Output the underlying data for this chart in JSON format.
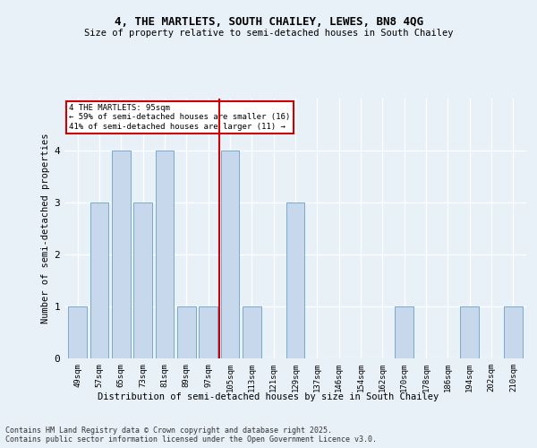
{
  "title1": "4, THE MARTLETS, SOUTH CHAILEY, LEWES, BN8 4QG",
  "title2": "Size of property relative to semi-detached houses in South Chailey",
  "xlabel": "Distribution of semi-detached houses by size in South Chailey",
  "ylabel": "Number of semi-detached properties",
  "categories": [
    "49sqm",
    "57sqm",
    "65sqm",
    "73sqm",
    "81sqm",
    "89sqm",
    "97sqm",
    "105sqm",
    "113sqm",
    "121sqm",
    "129sqm",
    "137sqm",
    "146sqm",
    "154sqm",
    "162sqm",
    "170sqm",
    "178sqm",
    "186sqm",
    "194sqm",
    "202sqm",
    "210sqm"
  ],
  "values": [
    1,
    3,
    4,
    3,
    4,
    1,
    1,
    4,
    1,
    0,
    3,
    0,
    0,
    0,
    0,
    1,
    0,
    0,
    1,
    0,
    1
  ],
  "bar_color": "#c8d8ec",
  "bar_edge_color": "#7aaac8",
  "vline_x": 6.5,
  "annotation_title": "4 THE MARTLETS: 95sqm",
  "annotation_line1": "← 59% of semi-detached houses are smaller (16)",
  "annotation_line2": "41% of semi-detached houses are larger (11) →",
  "vline_color": "#cc0000",
  "ylim": [
    0,
    5
  ],
  "yticks": [
    0,
    1,
    2,
    3,
    4
  ],
  "background_color": "#e8f0f8",
  "footer1": "Contains HM Land Registry data © Crown copyright and database right 2025.",
  "footer2": "Contains public sector information licensed under the Open Government Licence v3.0.",
  "grid_color": "#ffffff"
}
